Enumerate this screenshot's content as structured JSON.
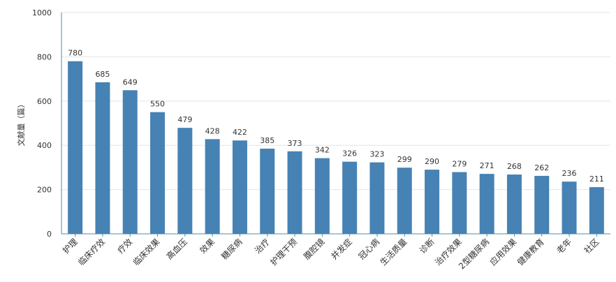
{
  "chart_data": {
    "type": "bar",
    "title": "",
    "xlabel": "",
    "ylabel": "文献量（篇）",
    "ylim": [
      0,
      1000
    ],
    "yticks": [
      0,
      200,
      400,
      600,
      800,
      1000
    ],
    "grid": true,
    "bar_color": "#4682b4",
    "categories": [
      "护理",
      "临床疗效",
      "疗效",
      "临床效果",
      "高血压",
      "效果",
      "糖尿病",
      "治疗",
      "护理干预",
      "腹腔镜",
      "并发症",
      "冠心病",
      "生活质量",
      "诊断",
      "治疗效果",
      "2型糖尿病",
      "应用效果",
      "健康教育",
      "老年",
      "社区"
    ],
    "values": [
      780,
      685,
      649,
      550,
      479,
      428,
      422,
      385,
      373,
      342,
      326,
      323,
      299,
      290,
      279,
      271,
      268,
      262,
      236,
      211
    ]
  }
}
